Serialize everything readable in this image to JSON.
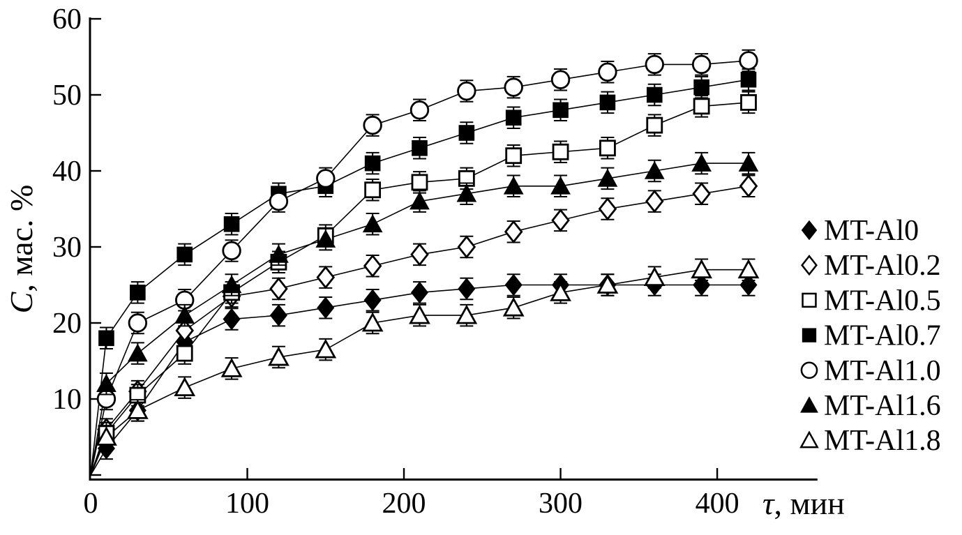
{
  "figure": {
    "background": "#ffffff",
    "foreground": "#000000"
  },
  "chart_data": {
    "type": "line",
    "title": "",
    "xlabel_italic": "τ",
    "xlabel_rest": ", мин",
    "ylabel_italic": "C",
    "ylabel_rest": ", мас. %",
    "xlim": [
      0,
      464
    ],
    "ylim": [
      0,
      60
    ],
    "x_ticks": [
      0,
      100,
      200,
      300,
      400
    ],
    "y_ticks": [
      0,
      10,
      20,
      30,
      40,
      50,
      60
    ],
    "grid": false,
    "legend_position": "right",
    "error_bar": 1.4,
    "x": [
      10,
      30,
      60,
      90,
      120,
      150,
      180,
      210,
      240,
      270,
      300,
      330,
      360,
      390,
      420
    ],
    "series": [
      {
        "name": "MT-Al0",
        "marker": "diamond-filled",
        "values": [
          3.5,
          8.5,
          17.5,
          20.5,
          21,
          22,
          23,
          24,
          24.5,
          25,
          25,
          25,
          25,
          25,
          25
        ]
      },
      {
        "name": "MT-Al0.2",
        "marker": "diamond-open",
        "values": [
          6,
          11,
          19,
          23.5,
          24.5,
          26,
          27.5,
          29,
          30,
          32,
          33.5,
          35,
          36,
          37,
          38
        ]
      },
      {
        "name": "MT-Al0.5",
        "marker": "square-open",
        "values": [
          5.5,
          10.5,
          16,
          24,
          28,
          31.5,
          37.5,
          38.5,
          39,
          42,
          42.5,
          43,
          46,
          48.5,
          49
        ]
      },
      {
        "name": "MT-Al0.7",
        "marker": "square-filled",
        "values": [
          18,
          24,
          29,
          33,
          37,
          38,
          41,
          43,
          45,
          47,
          48,
          49,
          50,
          51,
          52
        ]
      },
      {
        "name": "MT-Al1.0",
        "marker": "circle-open",
        "values": [
          10,
          20,
          23,
          29.5,
          36,
          39,
          46,
          48,
          50.5,
          51,
          52,
          53,
          54,
          54,
          54.5
        ]
      },
      {
        "name": "MT-Al1.6",
        "marker": "triangle-filled",
        "values": [
          12,
          16,
          21,
          25,
          29,
          31,
          33,
          36,
          37,
          38,
          38,
          39,
          40,
          41,
          41
        ]
      },
      {
        "name": "MT-Al1.8",
        "marker": "triangle-open",
        "values": [
          5,
          8.5,
          11.5,
          14,
          15.5,
          16.5,
          20,
          21,
          21,
          22,
          24,
          25,
          26,
          27,
          27
        ]
      }
    ]
  }
}
